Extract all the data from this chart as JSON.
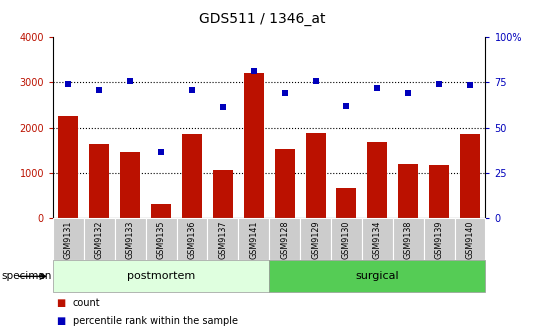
{
  "title": "GDS511 / 1346_at",
  "samples": [
    "GSM9131",
    "GSM9132",
    "GSM9133",
    "GSM9135",
    "GSM9136",
    "GSM9137",
    "GSM9141",
    "GSM9128",
    "GSM9129",
    "GSM9130",
    "GSM9134",
    "GSM9138",
    "GSM9139",
    "GSM9140"
  ],
  "counts": [
    2250,
    1630,
    1470,
    310,
    1850,
    1070,
    3200,
    1540,
    1880,
    660,
    1680,
    1210,
    1180,
    1870
  ],
  "percentiles": [
    73.8,
    70.5,
    75.8,
    36.5,
    70.8,
    61.3,
    81.0,
    69.0,
    76.0,
    61.8,
    71.8,
    69.0,
    74.0,
    73.5
  ],
  "groups": [
    {
      "label": "postmortem",
      "start": 0,
      "end": 7,
      "color": "#dfffdf"
    },
    {
      "label": "surgical",
      "start": 7,
      "end": 14,
      "color": "#55cc55"
    }
  ],
  "bar_color": "#bb1100",
  "dot_color": "#0000bb",
  "left_ylim": [
    0,
    4000
  ],
  "right_ylim": [
    0,
    100
  ],
  "left_yticks": [
    0,
    1000,
    2000,
    3000,
    4000
  ],
  "right_yticks": [
    0,
    25,
    50,
    75,
    100
  ],
  "right_yticklabels": [
    "0",
    "25",
    "50",
    "75",
    "100%"
  ],
  "grid_values": [
    1000,
    2000,
    3000
  ],
  "specimen_label": "specimen",
  "legend_count": "count",
  "legend_percentile": "percentile rank within the sample",
  "tick_label_bg": "#cccccc"
}
